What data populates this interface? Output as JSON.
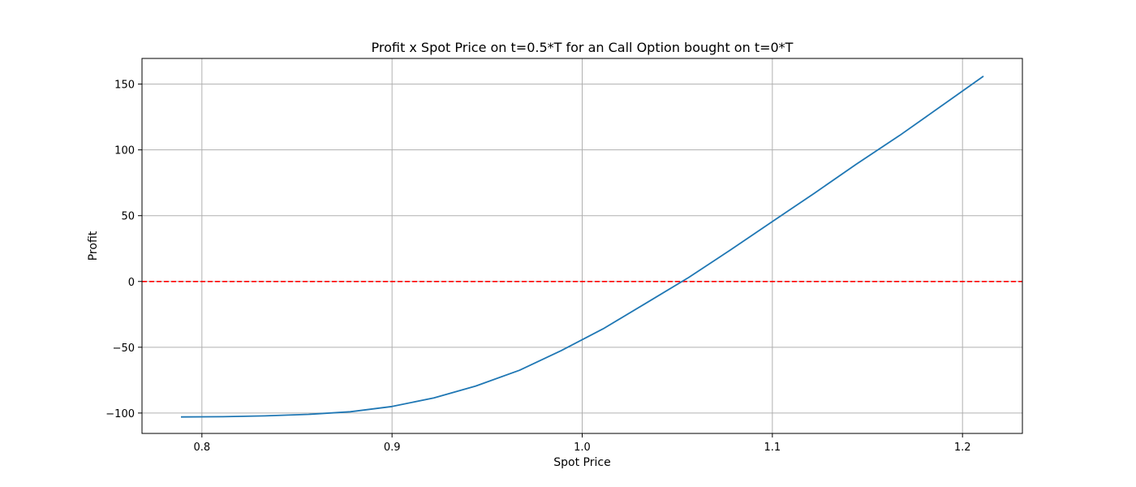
{
  "chart_data": {
    "type": "line",
    "title": "Profit x Spot Price on t=0.5*T for an Call Option bought on t=0*T",
    "xlabel": "Spot Price",
    "ylabel": "Profit",
    "xlim": [
      0.7685,
      1.2315
    ],
    "ylim": [
      -115.5,
      169.5
    ],
    "xticks": [
      0.8,
      0.9,
      1.0,
      1.1,
      1.2
    ],
    "xtick_labels": [
      "0.8",
      "0.9",
      "1.0",
      "1.1",
      "1.2"
    ],
    "yticks": [
      -100,
      -50,
      0,
      50,
      100,
      150
    ],
    "ytick_labels": [
      "−100",
      "−50",
      "0",
      "50",
      "100",
      "150"
    ],
    "grid": true,
    "series": [
      {
        "color": "#1f77b4",
        "x": [
          0.789,
          0.811,
          0.833,
          0.856,
          0.878,
          0.9,
          0.922,
          0.944,
          0.967,
          0.989,
          1.011,
          1.033,
          1.056,
          1.078,
          1.1,
          1.122,
          1.144,
          1.167,
          1.189,
          1.211
        ],
        "y": [
          -103.0,
          -102.8,
          -102.2,
          -101.0,
          -99.0,
          -95.0,
          -88.5,
          -79.5,
          -67.5,
          -52.5,
          -36.0,
          -17.0,
          3.0,
          24.0,
          45.5,
          67.0,
          89.0,
          111.0,
          133.5,
          156.0
        ]
      }
    ],
    "hlines": [
      {
        "y": 0,
        "color": "#ff0000",
        "style": "dashed"
      }
    ]
  }
}
